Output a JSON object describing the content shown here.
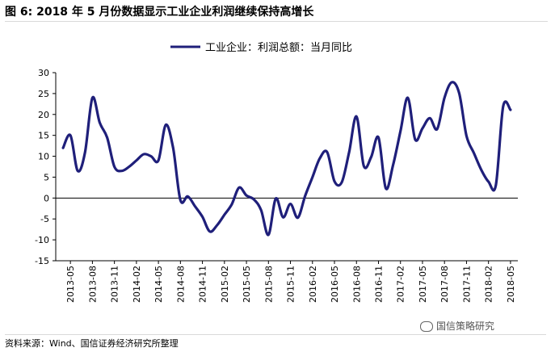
{
  "figure": {
    "title": "图 6:  2018 年 5 月份数据显示工业企业利润继续保持高增长",
    "source": "资料来源：Wind、国信证券经济研究所整理",
    "watermark": "国信策略研究"
  },
  "chart_data": {
    "type": "line",
    "title": "",
    "xlabel": "",
    "ylabel": "",
    "ylim": [
      -15,
      30
    ],
    "yticks": [
      -15,
      -10,
      -5,
      0,
      5,
      10,
      15,
      20,
      25,
      30
    ],
    "xticks": [
      "2013-05",
      "2013-08",
      "2013-11",
      "2014-02",
      "2014-05",
      "2014-08",
      "2014-11",
      "2015-02",
      "2015-05",
      "2015-08",
      "2015-11",
      "2016-02",
      "2016-05",
      "2016-08",
      "2016-11",
      "2017-02",
      "2017-05",
      "2017-08",
      "2017-11",
      "2018-02",
      "2018-05"
    ],
    "legend_position": "top-center",
    "grid": false,
    "series": [
      {
        "name": "工业企业：利润总额：当月同比",
        "color": "#1f1f7a",
        "points": [
          [
            "2013-04",
            12.0
          ],
          [
            "2013-05",
            15.0
          ],
          [
            "2013-06",
            6.5
          ],
          [
            "2013-07",
            11.0
          ],
          [
            "2013-08",
            24.0
          ],
          [
            "2013-09",
            18.0
          ],
          [
            "2013-10",
            14.5
          ],
          [
            "2013-11",
            7.5
          ],
          [
            "2013-12",
            6.5
          ],
          [
            "2014-01",
            7.5
          ],
          [
            "2014-02",
            9.0
          ],
          [
            "2014-03",
            10.5
          ],
          [
            "2014-04",
            10.0
          ],
          [
            "2014-05",
            9.0
          ],
          [
            "2014-06",
            17.5
          ],
          [
            "2014-07",
            12.0
          ],
          [
            "2014-08",
            -0.5
          ],
          [
            "2014-09",
            0.4
          ],
          [
            "2014-10",
            -2.0
          ],
          [
            "2014-11",
            -4.5
          ],
          [
            "2014-12",
            -8.0
          ],
          [
            "2015-01",
            -6.5
          ],
          [
            "2015-02",
            -4.0
          ],
          [
            "2015-03",
            -1.5
          ],
          [
            "2015-04",
            2.5
          ],
          [
            "2015-05",
            0.6
          ],
          [
            "2015-06",
            -0.3
          ],
          [
            "2015-07",
            -2.9
          ],
          [
            "2015-08",
            -8.8
          ],
          [
            "2015-09",
            -0.1
          ],
          [
            "2015-10",
            -4.6
          ],
          [
            "2015-11",
            -1.4
          ],
          [
            "2015-12",
            -4.7
          ],
          [
            "2016-01",
            0.5
          ],
          [
            "2016-02",
            5.0
          ],
          [
            "2016-03",
            9.5
          ],
          [
            "2016-04",
            11.0
          ],
          [
            "2016-05",
            4.0
          ],
          [
            "2016-06",
            3.8
          ],
          [
            "2016-07",
            11.0
          ],
          [
            "2016-08",
            19.5
          ],
          [
            "2016-09",
            7.7
          ],
          [
            "2016-10",
            9.8
          ],
          [
            "2016-11",
            14.5
          ],
          [
            "2016-12",
            2.3
          ],
          [
            "2017-01",
            8.0
          ],
          [
            "2017-02",
            16.0
          ],
          [
            "2017-03",
            24.0
          ],
          [
            "2017-04",
            14.0
          ],
          [
            "2017-05",
            16.7
          ],
          [
            "2017-06",
            19.1
          ],
          [
            "2017-07",
            16.5
          ],
          [
            "2017-08",
            24.0
          ],
          [
            "2017-09",
            27.7
          ],
          [
            "2017-10",
            25.1
          ],
          [
            "2017-11",
            14.9
          ],
          [
            "2017-12",
            10.8
          ],
          [
            "2018-01",
            6.8
          ],
          [
            "2018-02",
            3.9
          ],
          [
            "2018-03",
            3.1
          ],
          [
            "2018-04",
            21.9
          ],
          [
            "2018-05",
            21.1
          ]
        ]
      }
    ]
  }
}
